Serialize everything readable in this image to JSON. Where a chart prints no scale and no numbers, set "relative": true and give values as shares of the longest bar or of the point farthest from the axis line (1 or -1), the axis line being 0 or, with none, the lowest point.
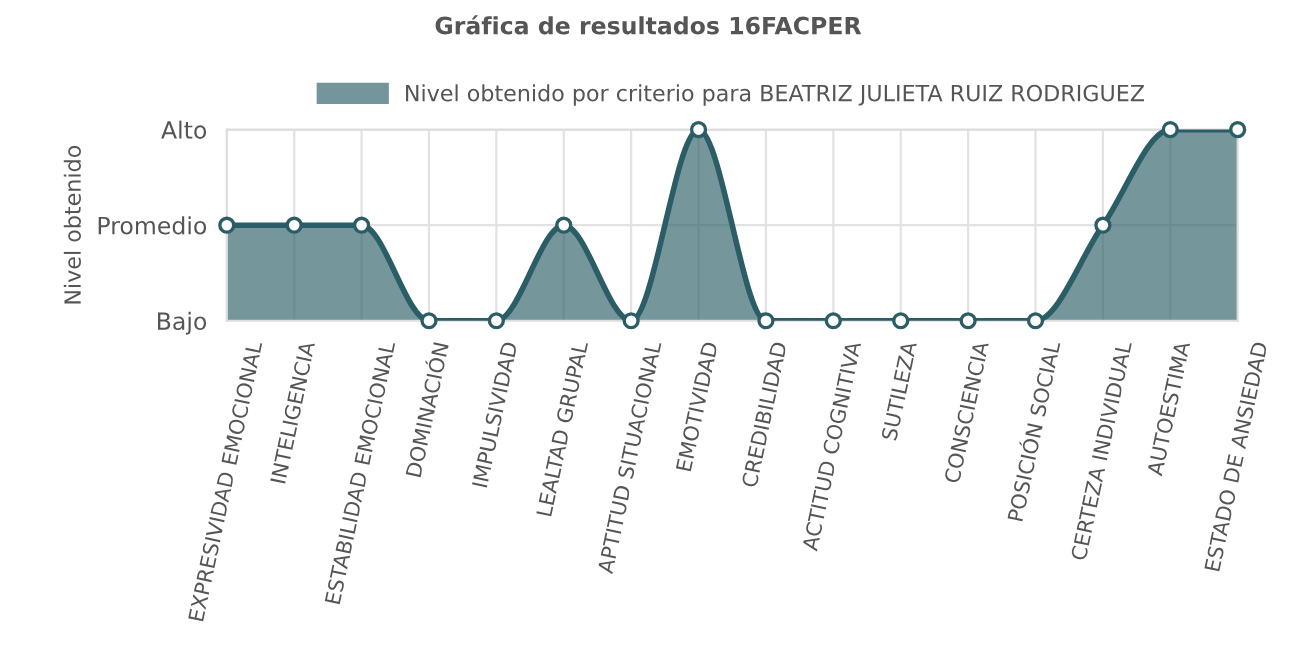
{
  "chart_data": {
    "type": "area",
    "title": "Gráfica de resultados 16FACPER",
    "ylabel": "Nivel obtenido",
    "categories": [
      "EXPRESIVIDAD EMOCIONAL",
      "INTELIGENCIA",
      "ESTABILIDAD EMOCIONAL",
      "DOMINACIÓN",
      "IMPULSIVIDAD",
      "LEALTAD GRUPAL",
      "APTITUD SITUACIONAL",
      "EMOTIVIDAD",
      "CREDIBILIDAD",
      "ACTITUD COGNITIVA",
      "SUTILEZA",
      "CONSCIENCIA",
      "POSICIÓN SOCIAL",
      "CERTEZA INDIVIDUAL",
      "AUTOESTIMA",
      "ESTADO DE ANSIEDAD"
    ],
    "series": [
      {
        "name": "Nivel obtenido por criterio para BEATRIZ JULIETA RUIZ RODRIGUEZ",
        "color": "#2b5d66",
        "values": [
          0.5,
          0.5,
          0.5,
          0,
          0,
          0.5,
          0,
          1,
          0,
          0,
          0,
          0,
          0,
          0.5,
          1,
          1
        ]
      }
    ],
    "relative": true,
    "y_categories": [
      "Alto",
      "Promedio",
      "Bajo"
    ],
    "grid": true,
    "legend": "top",
    "marker": "circle",
    "line_style": "solid"
  }
}
